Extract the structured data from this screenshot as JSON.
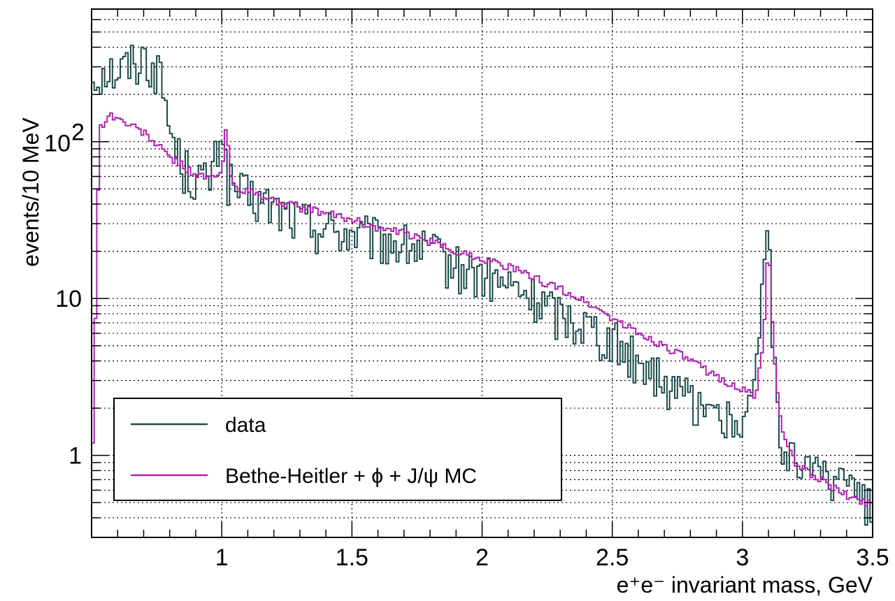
{
  "chart_data": {
    "type": "line",
    "xlabel": "e⁺e⁻ invariant mass, GeV",
    "ylabel": "events/10 MeV",
    "x_scale": "linear",
    "y_scale": "log",
    "xlim": [
      0.5,
      3.5
    ],
    "ylim": [
      0.3,
      700
    ],
    "x_ticks": [
      {
        "value": 1,
        "label": "1"
      },
      {
        "value": 1.5,
        "label": "1.5"
      },
      {
        "value": 2,
        "label": "2"
      },
      {
        "value": 2.5,
        "label": "2.5"
      },
      {
        "value": 3,
        "label": "3"
      },
      {
        "value": 3.5,
        "label": "3.5"
      }
    ],
    "y_ticks": [
      {
        "value": 1,
        "label": "1"
      },
      {
        "value": 10,
        "label": "10"
      },
      {
        "value": 100,
        "label": "10",
        "exponent": "2"
      }
    ],
    "grid": true,
    "legend_position": "bottom-left",
    "series": [
      {
        "name": "data",
        "color": "#1c4a4a",
        "x": [
          0.5,
          0.55,
          0.6,
          0.65,
          0.7,
          0.75,
          0.78,
          0.8,
          0.85,
          0.9,
          0.95,
          0.98,
          1.0,
          1.02,
          1.05,
          1.1,
          1.2,
          1.3,
          1.4,
          1.5,
          1.6,
          1.7,
          1.8,
          1.9,
          2.0,
          2.1,
          2.2,
          2.3,
          2.4,
          2.5,
          2.6,
          2.7,
          2.8,
          2.9,
          3.0,
          3.05,
          3.08,
          3.1,
          3.12,
          3.15,
          3.2,
          3.3,
          3.4,
          3.48
        ],
        "y": [
          250,
          300,
          280,
          320,
          350,
          300,
          200,
          120,
          70,
          60,
          55,
          80,
          140,
          60,
          50,
          45,
          38,
          32,
          28,
          26,
          24,
          22,
          20,
          16,
          14,
          12,
          10,
          8,
          7,
          5.5,
          4.2,
          3.0,
          2.2,
          1.8,
          1.5,
          3.0,
          12,
          28,
          4.0,
          1.2,
          0.9,
          0.7,
          0.6,
          0.5
        ]
      },
      {
        "name": "Bethe-Heitler + ϕ + J/ψ MC",
        "color": "#b020b0",
        "x": [
          0.5,
          0.53,
          0.57,
          0.6,
          0.7,
          0.8,
          0.9,
          0.95,
          1.0,
          1.019,
          1.03,
          1.05,
          1.1,
          1.2,
          1.3,
          1.4,
          1.5,
          1.6,
          1.7,
          1.8,
          1.9,
          2.0,
          2.1,
          2.2,
          2.3,
          2.4,
          2.5,
          2.6,
          2.7,
          2.8,
          2.9,
          3.0,
          3.05,
          3.08,
          3.1,
          3.12,
          3.15,
          3.2,
          3.3,
          3.4,
          3.48
        ],
        "y": [
          0.5,
          120,
          150,
          140,
          115,
          80,
          62,
          58,
          62,
          140,
          62,
          52,
          48,
          42,
          38,
          35,
          32,
          28,
          26,
          23,
          20,
          18,
          16,
          13.5,
          11.5,
          9.5,
          7.5,
          6.0,
          5.0,
          4.0,
          3.2,
          2.6,
          2.4,
          5.0,
          24,
          5.0,
          1.4,
          0.9,
          0.7,
          0.55,
          0.5
        ]
      }
    ]
  }
}
